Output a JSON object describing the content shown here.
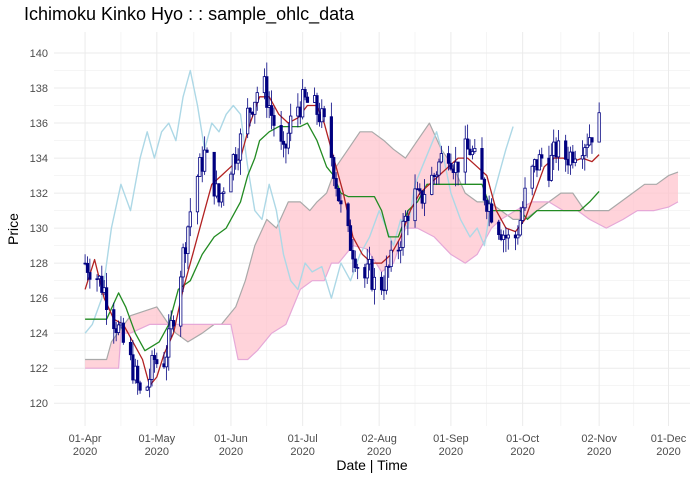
{
  "chart_data": {
    "type": "candlestick-ichimoku",
    "title": "Ichimoku Kinko Hyo : : sample_ohlc_data",
    "xlabel": "Date | Time",
    "ylabel": "Price",
    "ylim": [
      118.7,
      141.2
    ],
    "xlim": [
      "2020-03-19",
      "2020-12-10"
    ],
    "y_ticks": [
      120,
      122,
      124,
      126,
      128,
      130,
      132,
      134,
      136,
      138,
      140
    ],
    "x_ticks": [
      {
        "date": "2020-04-01",
        "label_day": "01-Apr",
        "label_year": "2020"
      },
      {
        "date": "2020-05-01",
        "label_day": "01-May",
        "label_year": "2020"
      },
      {
        "date": "2020-06-01",
        "label_day": "01-Jun",
        "label_year": "2020"
      },
      {
        "date": "2020-07-01",
        "label_day": "01-Jul",
        "label_year": "2020"
      },
      {
        "date": "2020-08-02",
        "label_day": "02-Aug",
        "label_year": "2020"
      },
      {
        "date": "2020-09-01",
        "label_day": "01-Sep",
        "label_year": "2020"
      },
      {
        "date": "2020-10-01",
        "label_day": "01-Oct",
        "label_year": "2020"
      },
      {
        "date": "2020-11-02",
        "label_day": "02-Nov",
        "label_year": "2020"
      },
      {
        "date": "2020-12-01",
        "label_day": "01-Dec",
        "label_year": "2020"
      }
    ],
    "grid": true,
    "colors": {
      "candle": "#000080",
      "cloud_fill": "#ffc0cb",
      "cloud_edge": "#a9a9a9",
      "chikou": "#add8e6",
      "tenkan": "#b22222",
      "kijun": "#228b22",
      "grid": "#ebebeb"
    },
    "price_anchors": [
      [
        "2020-04-01",
        128.0
      ],
      [
        "2020-04-05",
        127.5
      ],
      [
        "2020-04-09",
        126.5
      ],
      [
        "2020-04-12",
        125.2
      ],
      [
        "2020-04-15",
        124.2
      ],
      [
        "2020-04-18",
        123.0
      ],
      [
        "2020-04-21",
        122.0
      ],
      [
        "2020-04-24",
        120.5
      ],
      [
        "2020-04-27",
        121.0
      ],
      [
        "2020-04-30",
        122.5
      ],
      [
        "2020-05-03",
        122.0
      ],
      [
        "2020-05-06",
        123.5
      ],
      [
        "2020-05-09",
        126.0
      ],
      [
        "2020-05-12",
        128.5
      ],
      [
        "2020-05-15",
        131.0
      ],
      [
        "2020-05-18",
        133.0
      ],
      [
        "2020-05-21",
        134.2
      ],
      [
        "2020-05-24",
        133.0
      ],
      [
        "2020-05-27",
        131.5
      ],
      [
        "2020-05-30",
        133.0
      ],
      [
        "2020-06-02",
        134.0
      ],
      [
        "2020-06-05",
        135.0
      ],
      [
        "2020-06-08",
        136.5
      ],
      [
        "2020-06-11",
        137.5
      ],
      [
        "2020-06-14",
        138.5
      ],
      [
        "2020-06-17",
        137.0
      ],
      [
        "2020-06-20",
        135.5
      ],
      [
        "2020-06-23",
        134.0
      ],
      [
        "2020-06-26",
        136.0
      ],
      [
        "2020-06-29",
        137.0
      ],
      [
        "2020-07-02",
        137.2
      ],
      [
        "2020-07-05",
        137.0
      ],
      [
        "2020-07-08",
        136.5
      ],
      [
        "2020-07-11",
        135.5
      ],
      [
        "2020-07-14",
        133.5
      ],
      [
        "2020-07-17",
        131.0
      ],
      [
        "2020-07-20",
        129.5
      ],
      [
        "2020-07-23",
        128.5
      ],
      [
        "2020-07-26",
        127.0
      ],
      [
        "2020-07-29",
        127.5
      ],
      [
        "2020-08-01",
        126.5
      ],
      [
        "2020-08-04",
        127.0
      ],
      [
        "2020-08-07",
        128.0
      ],
      [
        "2020-08-10",
        129.0
      ],
      [
        "2020-08-13",
        130.5
      ],
      [
        "2020-08-16",
        132.0
      ],
      [
        "2020-08-19",
        131.5
      ],
      [
        "2020-08-22",
        132.5
      ],
      [
        "2020-08-25",
        133.0
      ],
      [
        "2020-08-28",
        134.0
      ],
      [
        "2020-08-31",
        134.5
      ],
      [
        "2020-09-03",
        133.5
      ],
      [
        "2020-09-06",
        134.2
      ],
      [
        "2020-09-09",
        134.5
      ],
      [
        "2020-09-12",
        133.5
      ],
      [
        "2020-09-15",
        132.0
      ],
      [
        "2020-09-18",
        131.0
      ],
      [
        "2020-09-21",
        130.2
      ],
      [
        "2020-09-24",
        129.5
      ],
      [
        "2020-09-27",
        129.0
      ],
      [
        "2020-09-30",
        130.5
      ],
      [
        "2020-10-03",
        132.5
      ],
      [
        "2020-10-06",
        133.5
      ],
      [
        "2020-10-09",
        134.0
      ],
      [
        "2020-10-12",
        133.5
      ],
      [
        "2020-10-15",
        134.5
      ],
      [
        "2020-10-18",
        134.0
      ],
      [
        "2020-10-21",
        134.2
      ],
      [
        "2020-10-24",
        134.8
      ],
      [
        "2020-10-27",
        135.0
      ],
      [
        "2020-10-30",
        135.5
      ],
      [
        "2020-11-02",
        136.0
      ]
    ],
    "series": [
      {
        "name": "",
        "role": "chikou",
        "x": [
          "2020-04-01",
          "2020-04-04",
          "2020-04-08",
          "2020-04-12",
          "2020-04-16",
          "2020-04-20",
          "2020-04-24",
          "2020-04-27",
          "2020-04-30",
          "2020-05-03",
          "2020-05-06",
          "2020-05-09",
          "2020-05-12",
          "2020-05-15",
          "2020-05-18",
          "2020-05-21",
          "2020-05-24",
          "2020-05-27",
          "2020-05-30",
          "2020-06-02",
          "2020-06-05",
          "2020-06-08",
          "2020-06-11",
          "2020-06-14",
          "2020-06-17",
          "2020-06-20",
          "2020-06-23",
          "2020-06-26",
          "2020-06-29",
          "2020-07-02",
          "2020-07-05",
          "2020-07-09",
          "2020-07-13",
          "2020-07-17",
          "2020-07-21",
          "2020-07-25",
          "2020-07-29",
          "2020-08-02",
          "2020-08-05",
          "2020-08-08",
          "2020-08-11",
          "2020-08-14",
          "2020-08-17",
          "2020-08-20",
          "2020-08-23",
          "2020-08-26",
          "2020-08-29",
          "2020-09-01",
          "2020-09-05",
          "2020-09-09",
          "2020-09-12",
          "2020-09-15",
          "2020-09-18",
          "2020-09-21",
          "2020-09-24",
          "2020-09-27"
        ],
        "y": [
          124.0,
          124.5,
          126.0,
          130.0,
          132.5,
          131.0,
          134.0,
          135.5,
          134.0,
          135.5,
          136.0,
          135.0,
          137.5,
          139.0,
          137.0,
          134.5,
          136.0,
          135.5,
          136.5,
          137.0,
          136.5,
          133.5,
          131.0,
          130.5,
          132.5,
          131.0,
          128.5,
          127.0,
          126.5,
          128.0,
          127.5,
          127.8,
          126.0,
          128.0,
          127.0,
          128.5,
          129.5,
          131.0,
          130.0,
          129.0,
          130.5,
          130.0,
          132.5,
          133.5,
          134.5,
          135.5,
          134.0,
          132.0,
          130.5,
          129.5,
          130.0,
          129.0,
          131.5,
          133.0,
          134.5,
          135.8
        ]
      },
      {
        "name": "",
        "role": "tenkan",
        "x": [
          "2020-04-01",
          "2020-04-05",
          "2020-04-09",
          "2020-04-13",
          "2020-04-17",
          "2020-04-21",
          "2020-04-25",
          "2020-04-28",
          "2020-05-01",
          "2020-05-04",
          "2020-05-08",
          "2020-05-12",
          "2020-05-16",
          "2020-05-20",
          "2020-05-24",
          "2020-05-28",
          "2020-06-01",
          "2020-06-05",
          "2020-06-09",
          "2020-06-13",
          "2020-06-17",
          "2020-06-21",
          "2020-06-25",
          "2020-06-29",
          "2020-07-03",
          "2020-07-07",
          "2020-07-10",
          "2020-07-14",
          "2020-07-18",
          "2020-07-22",
          "2020-07-26",
          "2020-07-30",
          "2020-08-03",
          "2020-08-07",
          "2020-08-11",
          "2020-08-15",
          "2020-08-19",
          "2020-08-23",
          "2020-08-27",
          "2020-08-31",
          "2020-09-04",
          "2020-09-08",
          "2020-09-12",
          "2020-09-16",
          "2020-09-20",
          "2020-09-24",
          "2020-09-28",
          "2020-10-02",
          "2020-10-06",
          "2020-10-10",
          "2020-10-14",
          "2020-10-18",
          "2020-10-22",
          "2020-10-26",
          "2020-10-30",
          "2020-11-02"
        ],
        "y": [
          126.5,
          128.2,
          126.0,
          124.8,
          124.5,
          123.5,
          122.5,
          121.0,
          121.5,
          122.8,
          124.0,
          126.5,
          128.5,
          130.5,
          132.5,
          133.0,
          133.5,
          134.0,
          136.0,
          137.5,
          137.5,
          136.5,
          136.0,
          136.3,
          137.0,
          137.0,
          136.0,
          134.0,
          132.0,
          129.5,
          128.5,
          128.0,
          128.0,
          128.5,
          129.5,
          131.0,
          132.0,
          132.5,
          133.0,
          133.5,
          134.0,
          134.0,
          133.5,
          133.0,
          131.0,
          130.0,
          129.8,
          130.5,
          132.0,
          133.5,
          134.0,
          134.0,
          133.8,
          134.0,
          133.8,
          134.2
        ]
      },
      {
        "name": "",
        "role": "kijun",
        "x": [
          "2020-04-01",
          "2020-04-10",
          "2020-04-15",
          "2020-04-18",
          "2020-04-22",
          "2020-04-26",
          "2020-05-02",
          "2020-05-06",
          "2020-05-10",
          "2020-05-15",
          "2020-05-20",
          "2020-05-25",
          "2020-05-30",
          "2020-06-05",
          "2020-06-08",
          "2020-06-11",
          "2020-06-13",
          "2020-06-17",
          "2020-06-21",
          "2020-06-25",
          "2020-06-30",
          "2020-07-03",
          "2020-07-07",
          "2020-07-11",
          "2020-07-14",
          "2020-07-17",
          "2020-07-20",
          "2020-07-26",
          "2020-07-31",
          "2020-08-03",
          "2020-08-06",
          "2020-08-10",
          "2020-08-14",
          "2020-08-18",
          "2020-08-22",
          "2020-08-26",
          "2020-09-01",
          "2020-09-07",
          "2020-09-10",
          "2020-09-14",
          "2020-09-18",
          "2020-09-25",
          "2020-09-30",
          "2020-10-03",
          "2020-10-07",
          "2020-10-11",
          "2020-10-15",
          "2020-10-20",
          "2020-10-25",
          "2020-10-29",
          "2020-11-02"
        ],
        "y": [
          124.8,
          124.8,
          126.3,
          125.5,
          124.0,
          123.0,
          123.5,
          124.5,
          126.5,
          127.0,
          128.5,
          129.5,
          130.0,
          131.5,
          133.0,
          134.0,
          135.0,
          135.5,
          135.8,
          135.8,
          135.8,
          136.0,
          135.0,
          133.5,
          133.0,
          132.0,
          131.8,
          131.8,
          131.8,
          131.0,
          129.5,
          129.5,
          131.0,
          131.5,
          132.5,
          132.5,
          132.5,
          132.5,
          132.5,
          132.5,
          131.0,
          131.0,
          131.0,
          130.5,
          131.0,
          131.0,
          131.0,
          131.0,
          131.0,
          131.5,
          132.1
        ]
      },
      {
        "name": "",
        "role": "senkou_a",
        "x": [
          "2020-04-01",
          "2020-04-10",
          "2020-04-12",
          "2020-04-20",
          "2020-05-01",
          "2020-05-06",
          "2020-05-09",
          "2020-05-14",
          "2020-05-20",
          "2020-05-25",
          "2020-05-28",
          "2020-06-03",
          "2020-06-07",
          "2020-06-11",
          "2020-06-16",
          "2020-06-20",
          "2020-06-25",
          "2020-06-30",
          "2020-07-04",
          "2020-07-07",
          "2020-07-11",
          "2020-07-15",
          "2020-07-20",
          "2020-07-25",
          "2020-07-30",
          "2020-08-04",
          "2020-08-08",
          "2020-08-13",
          "2020-08-18",
          "2020-08-23",
          "2020-08-28",
          "2020-09-02",
          "2020-09-07",
          "2020-09-12",
          "2020-09-17",
          "2020-09-22",
          "2020-09-27",
          "2020-10-02",
          "2020-10-07",
          "2020-10-12",
          "2020-10-17",
          "2020-10-22",
          "2020-10-27",
          "2020-11-01",
          "2020-11-06",
          "2020-11-11",
          "2020-11-16",
          "2020-11-21",
          "2020-11-26",
          "2020-12-01",
          "2020-12-05"
        ],
        "y": [
          122.5,
          122.5,
          123.5,
          125.0,
          125.5,
          124.5,
          124.0,
          123.5,
          124.0,
          124.5,
          124.5,
          125.5,
          127.0,
          129.0,
          130.5,
          130.0,
          131.5,
          131.5,
          131.0,
          131.5,
          132.0,
          133.5,
          134.5,
          135.5,
          135.5,
          135.0,
          134.5,
          134.0,
          135.0,
          136.0,
          134.5,
          133.5,
          132.0,
          131.5,
          131.5,
          131.0,
          130.5,
          130.5,
          131.0,
          131.5,
          132.0,
          132.0,
          131.0,
          131.0,
          131.0,
          131.5,
          132.0,
          132.5,
          132.5,
          133.0,
          133.2
        ]
      },
      {
        "name": "",
        "role": "senkou_b",
        "x": [
          "2020-04-01",
          "2020-04-15",
          "2020-04-16",
          "2020-04-20",
          "2020-04-28",
          "2020-05-05",
          "2020-05-10",
          "2020-05-14",
          "2020-05-20",
          "2020-05-25",
          "2020-06-01",
          "2020-06-04",
          "2020-06-08",
          "2020-06-12",
          "2020-06-18",
          "2020-06-24",
          "2020-06-30",
          "2020-07-05",
          "2020-07-10",
          "2020-07-13",
          "2020-07-16",
          "2020-07-22",
          "2020-07-28",
          "2020-08-03",
          "2020-08-08",
          "2020-08-13",
          "2020-08-18",
          "2020-08-25",
          "2020-09-01",
          "2020-09-07",
          "2020-09-12",
          "2020-09-18",
          "2020-09-22",
          "2020-09-28",
          "2020-10-05",
          "2020-10-12",
          "2020-10-18",
          "2020-10-24",
          "2020-10-29",
          "2020-11-05",
          "2020-11-12",
          "2020-11-18",
          "2020-11-25",
          "2020-12-01",
          "2020-12-05"
        ],
        "y": [
          122.0,
          122.0,
          124.0,
          124.0,
          124.5,
          124.5,
          124.5,
          124.5,
          124.5,
          124.5,
          124.5,
          122.5,
          122.5,
          123.0,
          124.0,
          124.5,
          126.5,
          127.0,
          127.0,
          128.0,
          128.0,
          129.0,
          128.8,
          127.5,
          128.0,
          130.0,
          130.0,
          129.5,
          128.5,
          128.0,
          128.5,
          130.0,
          130.5,
          131.0,
          131.5,
          131.5,
          131.0,
          131.0,
          130.5,
          130.0,
          130.5,
          131.0,
          131.0,
          131.2,
          131.5
        ]
      }
    ]
  }
}
